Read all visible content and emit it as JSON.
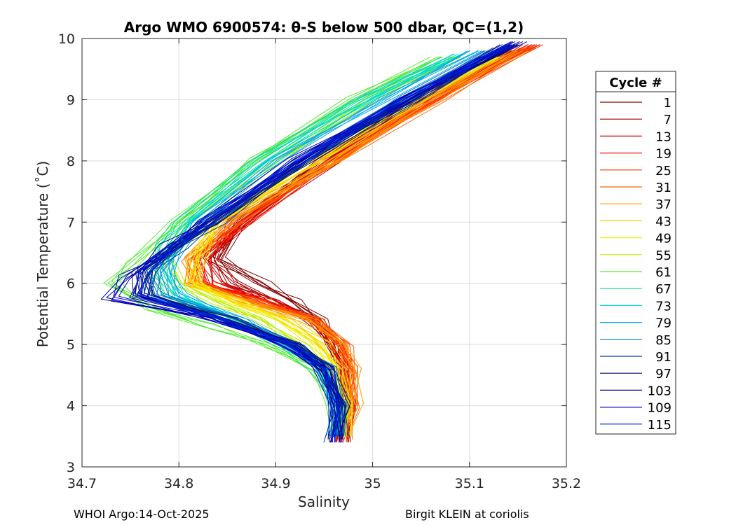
{
  "footer": {
    "left": "WHOI Argo:14-Oct-2025",
    "right": "Birgit KLEIN at coriolis"
  },
  "chart_data": {
    "type": "line",
    "title": "Argo WMO 6900574: θ-S below 500 dbar,  QC=(1,2)",
    "xlabel": "Salinity",
    "ylabel": "Potential Temperature (˚C)",
    "xlim": [
      34.7,
      35.2
    ],
    "ylim": [
      3,
      10
    ],
    "xticks": [
      34.7,
      34.8,
      34.9,
      35,
      35.1,
      35.2
    ],
    "xtick_labels": [
      "34.7",
      "34.8",
      "34.9",
      "35",
      "35.1",
      "35.2"
    ],
    "yticks": [
      3,
      4,
      5,
      6,
      7,
      8,
      9,
      10
    ],
    "ytick_labels": [
      "3",
      "4",
      "5",
      "6",
      "7",
      "8",
      "9",
      "10"
    ],
    "grid": true,
    "legend_title": "Cycle #",
    "legend_position": "right",
    "series": [
      {
        "name": "1",
        "color": "#800000",
        "theta": [
          3.4,
          4.0,
          4.6,
          5.0,
          5.4,
          5.7,
          6.0,
          6.4,
          7.0,
          8.0,
          9.0,
          9.8
        ],
        "salinity": [
          34.97,
          34.975,
          34.97,
          34.96,
          34.945,
          34.92,
          34.885,
          34.84,
          34.865,
          34.95,
          35.045,
          35.14
        ]
      },
      {
        "name": "7",
        "color": "#a50000",
        "theta": [
          3.45,
          4.0,
          4.6,
          5.0,
          5.4,
          5.7,
          6.0,
          6.4,
          7.0,
          8.0,
          9.0,
          9.8
        ],
        "salinity": [
          34.968,
          34.973,
          34.968,
          34.958,
          34.94,
          34.9,
          34.858,
          34.835,
          34.858,
          34.948,
          35.046,
          35.142
        ]
      },
      {
        "name": "13",
        "color": "#cc0000",
        "theta": [
          3.45,
          4.0,
          4.6,
          5.0,
          5.4,
          5.7,
          6.0,
          6.4,
          7.0,
          8.0,
          9.0,
          9.85
        ],
        "salinity": [
          34.966,
          34.975,
          34.972,
          34.962,
          34.94,
          34.895,
          34.84,
          34.83,
          34.87,
          34.955,
          35.055,
          35.16
        ]
      },
      {
        "name": "19",
        "color": "#ee1100",
        "theta": [
          3.4,
          4.0,
          4.6,
          5.0,
          5.4,
          5.7,
          6.0,
          6.4,
          7.0,
          8.0,
          9.0,
          9.9
        ],
        "salinity": [
          34.965,
          34.976,
          34.974,
          34.965,
          34.94,
          34.89,
          34.83,
          34.822,
          34.868,
          34.958,
          35.06,
          35.165
        ]
      },
      {
        "name": "25",
        "color": "#ff3300",
        "theta": [
          3.4,
          4.0,
          4.6,
          5.0,
          5.4,
          5.7,
          6.0,
          6.4,
          7.0,
          8.0,
          9.0,
          9.9
        ],
        "salinity": [
          34.967,
          34.977,
          34.976,
          34.968,
          34.942,
          34.885,
          34.82,
          34.815,
          34.864,
          34.96,
          35.063,
          35.168
        ]
      },
      {
        "name": "31",
        "color": "#ff6600",
        "theta": [
          3.45,
          4.0,
          4.6,
          5.0,
          5.4,
          5.7,
          6.0,
          6.4,
          7.0,
          8.0,
          9.0,
          9.85
        ],
        "salinity": [
          34.97,
          34.978,
          34.978,
          34.97,
          34.94,
          34.88,
          34.815,
          34.812,
          34.858,
          34.962,
          35.066,
          35.16
        ]
      },
      {
        "name": "37",
        "color": "#ff9900",
        "theta": [
          3.5,
          4.0,
          4.6,
          5.0,
          5.4,
          5.7,
          6.0,
          6.4,
          7.0,
          8.0,
          9.0,
          9.8
        ],
        "salinity": [
          34.972,
          34.98,
          34.98,
          34.97,
          34.935,
          34.87,
          34.812,
          34.812,
          34.848,
          34.96,
          35.06,
          35.15
        ]
      },
      {
        "name": "43",
        "color": "#ffcc00",
        "theta": [
          3.5,
          4.0,
          4.6,
          5.0,
          5.4,
          5.7,
          6.0,
          6.4,
          7.0,
          8.0,
          9.0,
          9.7
        ],
        "salinity": [
          34.97,
          34.975,
          34.968,
          34.95,
          34.915,
          34.86,
          34.815,
          34.818,
          34.84,
          34.945,
          35.05,
          35.13
        ]
      },
      {
        "name": "49",
        "color": "#eeee00",
        "theta": [
          3.5,
          4.0,
          4.6,
          5.0,
          5.4,
          5.7,
          6.0,
          6.4,
          7.0,
          8.0,
          9.0,
          9.7
        ],
        "salinity": [
          34.968,
          34.972,
          34.962,
          34.942,
          34.905,
          34.855,
          34.815,
          34.82,
          34.835,
          34.94,
          35.04,
          35.125
        ]
      },
      {
        "name": "55",
        "color": "#bbee00",
        "theta": [
          3.5,
          4.0,
          4.6,
          5.0,
          5.4,
          5.7,
          6.0,
          6.4,
          7.0,
          8.0,
          9.0,
          9.7
        ],
        "salinity": [
          34.965,
          34.968,
          34.952,
          34.925,
          34.885,
          34.835,
          34.8,
          34.79,
          34.81,
          34.9,
          35.0,
          35.09
        ]
      },
      {
        "name": "61",
        "color": "#55ee33",
        "theta": [
          3.5,
          4.0,
          4.6,
          5.0,
          5.3,
          5.6,
          6.0,
          6.3,
          7.0,
          8.0,
          9.0,
          9.7
        ],
        "salinity": [
          34.962,
          34.962,
          34.94,
          34.89,
          34.83,
          34.77,
          34.73,
          34.75,
          34.8,
          34.875,
          34.98,
          35.07
        ]
      },
      {
        "name": "67",
        "color": "#22dd88",
        "theta": [
          3.5,
          4.0,
          4.6,
          5.0,
          5.4,
          5.8,
          6.2,
          6.6,
          7.0,
          8.0,
          9.0,
          9.7
        ],
        "salinity": [
          34.962,
          34.963,
          34.945,
          34.905,
          34.85,
          34.79,
          34.775,
          34.78,
          34.8,
          34.88,
          34.985,
          35.08
        ]
      },
      {
        "name": "73",
        "color": "#00ddcc",
        "theta": [
          3.5,
          4.0,
          4.6,
          5.0,
          5.4,
          5.8,
          6.2,
          6.6,
          7.0,
          8.0,
          9.0,
          9.75
        ],
        "salinity": [
          34.962,
          34.964,
          34.948,
          34.91,
          34.86,
          34.8,
          34.785,
          34.79,
          34.81,
          34.89,
          34.995,
          35.09
        ]
      },
      {
        "name": "79",
        "color": "#00aaee",
        "theta": [
          3.5,
          4.0,
          4.6,
          5.0,
          5.4,
          5.8,
          6.2,
          6.6,
          7.0,
          8.0,
          9.0,
          9.8
        ],
        "salinity": [
          34.963,
          34.965,
          34.95,
          34.915,
          34.865,
          34.8,
          34.79,
          34.8,
          34.82,
          34.9,
          35.01,
          35.105
        ]
      },
      {
        "name": "85",
        "color": "#0077cc",
        "theta": [
          3.5,
          4.0,
          4.6,
          5.0,
          5.4,
          5.8,
          6.2,
          6.6,
          7.0,
          8.0,
          9.0,
          9.8
        ],
        "salinity": [
          34.964,
          34.966,
          34.952,
          34.918,
          34.86,
          34.78,
          34.775,
          34.8,
          34.83,
          34.925,
          35.03,
          35.12
        ]
      },
      {
        "name": "91",
        "color": "#004499",
        "theta": [
          3.5,
          4.0,
          4.6,
          5.0,
          5.4,
          5.8,
          6.2,
          6.6,
          7.0,
          8.0,
          9.0,
          9.85
        ],
        "salinity": [
          34.965,
          34.968,
          34.955,
          34.92,
          34.855,
          34.77,
          34.77,
          34.8,
          34.84,
          34.93,
          35.04,
          35.135
        ]
      },
      {
        "name": "97",
        "color": "#001166",
        "theta": [
          3.5,
          4.0,
          4.6,
          5.0,
          5.4,
          5.8,
          6.2,
          6.6,
          7.0,
          8.0,
          9.0,
          9.9
        ],
        "salinity": [
          34.965,
          34.968,
          34.955,
          34.92,
          34.85,
          34.765,
          34.765,
          34.795,
          34.835,
          34.93,
          35.04,
          35.14
        ]
      },
      {
        "name": "103",
        "color": "#000088",
        "theta": [
          3.45,
          4.0,
          4.6,
          5.0,
          5.4,
          5.8,
          6.2,
          6.6,
          7.0,
          8.0,
          9.0,
          9.9
        ],
        "salinity": [
          34.962,
          34.965,
          34.95,
          34.915,
          34.845,
          34.755,
          34.76,
          34.79,
          34.83,
          34.925,
          35.035,
          35.145
        ]
      },
      {
        "name": "109",
        "color": "#0000bb",
        "theta": [
          3.4,
          4.0,
          4.6,
          5.0,
          5.4,
          5.75,
          6.1,
          6.5,
          7.0,
          8.0,
          9.0,
          9.95
        ],
        "salinity": [
          34.96,
          34.962,
          34.948,
          34.91,
          34.84,
          34.73,
          34.745,
          34.785,
          34.825,
          34.92,
          35.03,
          35.15
        ]
      },
      {
        "name": "115",
        "color": "#0022dd",
        "theta": [
          3.4,
          4.0,
          4.6,
          5.0,
          5.4,
          5.8,
          6.2,
          6.6,
          7.0,
          8.0,
          9.0,
          9.9
        ],
        "salinity": [
          34.96,
          34.963,
          34.95,
          34.915,
          34.845,
          34.76,
          34.765,
          34.795,
          34.83,
          34.925,
          35.035,
          35.14
        ]
      }
    ]
  }
}
